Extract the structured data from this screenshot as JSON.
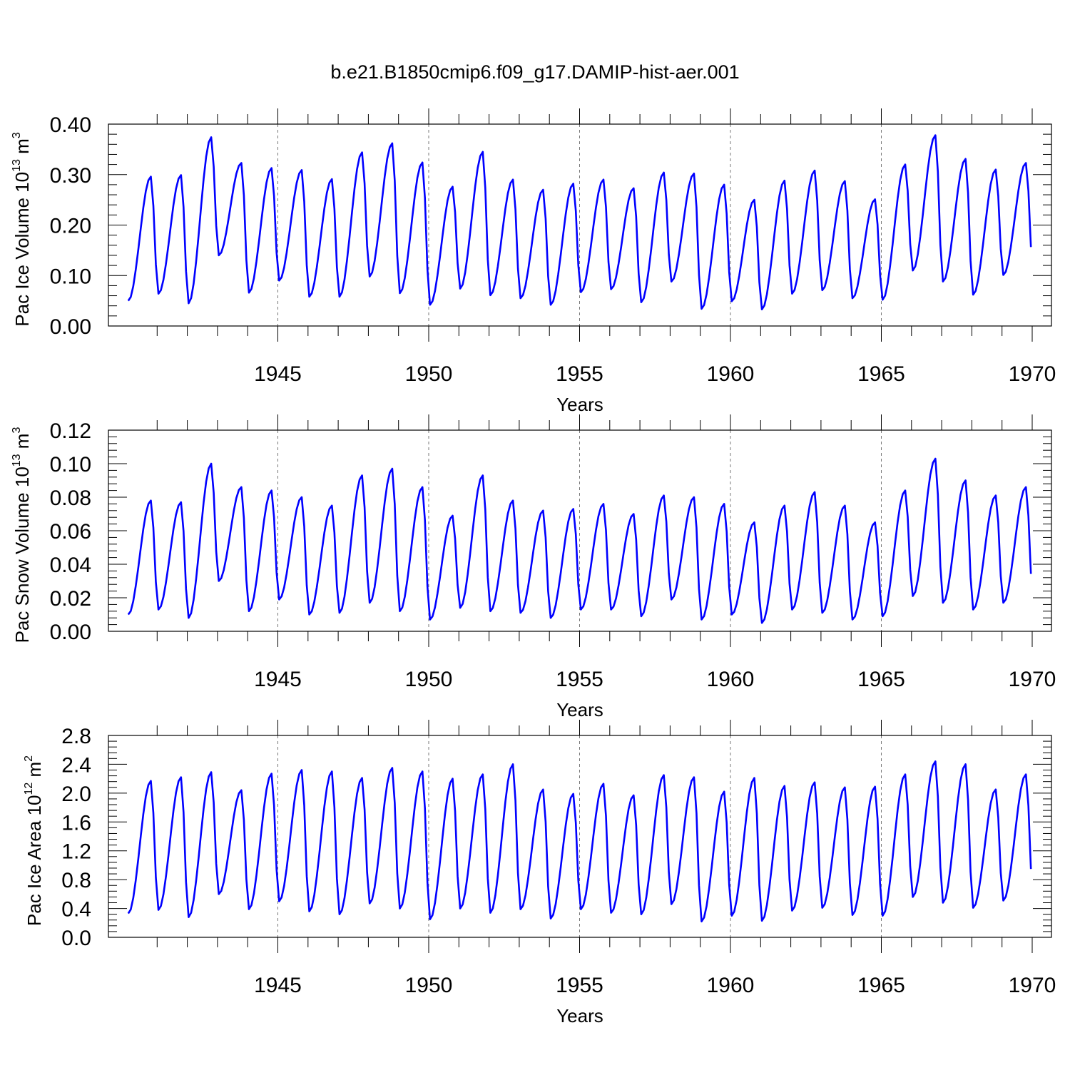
{
  "title": "b.e21.B1850cmip6.f09_g17.DAMIP-hist-aer.001",
  "chart_data": [
    {
      "type": "line",
      "ylabel": "Pac Ice Volume",
      "ylabel_unit_base": "10",
      "ylabel_unit_exp": "13",
      "ylabel_unit_m": "m",
      "ylabel_unit_dim": "3",
      "xlabel": "Years",
      "xlim": [
        1940.0,
        1970.0
      ],
      "ylim": [
        0.0,
        0.4
      ],
      "xticks": [
        "1945",
        "1950",
        "1955",
        "1960",
        "1965",
        "1970"
      ],
      "yticks": [
        "0.00",
        "0.10",
        "0.20",
        "0.30",
        "0.40"
      ],
      "line_color": "#0000ff",
      "grid": "vertical dashed at 1945, 1950, 1955, 1960, 1965",
      "series": [
        {
          "peaks": [
            0.296,
            0.299,
            0.374,
            0.323,
            0.313,
            0.309,
            0.291,
            0.344,
            0.362,
            0.324,
            0.276,
            0.345,
            0.29,
            0.27,
            0.282,
            0.29,
            0.273,
            0.304,
            0.302,
            0.28,
            0.25,
            0.288,
            0.308,
            0.287,
            0.251,
            0.32,
            0.378,
            0.331,
            0.31,
            0.323
          ],
          "troughs": [
            0.05,
            0.064,
            0.045,
            0.14,
            0.066,
            0.09,
            0.058,
            0.058,
            0.098,
            0.065,
            0.042,
            0.074,
            0.061,
            0.055,
            0.042,
            0.067,
            0.073,
            0.047,
            0.088,
            0.034,
            0.049,
            0.033,
            0.064,
            0.071,
            0.055,
            0.052,
            0.11,
            0.088,
            0.062,
            0.101
          ]
        }
      ]
    },
    {
      "type": "line",
      "ylabel": "Pac Snow Volume",
      "ylabel_unit_base": "10",
      "ylabel_unit_exp": "13",
      "ylabel_unit_m": "m",
      "ylabel_unit_dim": "3",
      "xlabel": "Years",
      "xlim": [
        1940.0,
        1970.0
      ],
      "ylim": [
        0.0,
        0.12
      ],
      "xticks": [
        "1945",
        "1950",
        "1955",
        "1960",
        "1965",
        "1970"
      ],
      "yticks": [
        "0.00",
        "0.02",
        "0.04",
        "0.06",
        "0.08",
        "0.10",
        "0.12"
      ],
      "line_color": "#0000ff",
      "grid": "vertical dashed at 1945, 1950, 1955, 1960, 1965",
      "series": [
        {
          "peaks": [
            0.078,
            0.077,
            0.1,
            0.086,
            0.084,
            0.08,
            0.075,
            0.093,
            0.097,
            0.086,
            0.069,
            0.093,
            0.078,
            0.072,
            0.073,
            0.076,
            0.07,
            0.081,
            0.08,
            0.076,
            0.065,
            0.075,
            0.083,
            0.075,
            0.065,
            0.084,
            0.103,
            0.09,
            0.081,
            0.086
          ],
          "troughs": [
            0.01,
            0.013,
            0.008,
            0.03,
            0.012,
            0.019,
            0.01,
            0.011,
            0.017,
            0.012,
            0.007,
            0.014,
            0.012,
            0.011,
            0.008,
            0.013,
            0.013,
            0.009,
            0.019,
            0.007,
            0.01,
            0.005,
            0.013,
            0.011,
            0.007,
            0.009,
            0.021,
            0.017,
            0.013,
            0.017
          ]
        }
      ]
    },
    {
      "type": "line",
      "ylabel": "Pac Ice Area",
      "ylabel_unit_base": "10",
      "ylabel_unit_exp": "12",
      "ylabel_unit_m": "m",
      "ylabel_unit_dim": "2",
      "xlabel": "Years",
      "xlim": [
        1940.0,
        1970.0
      ],
      "ylim": [
        0.0,
        2.8
      ],
      "xticks": [
        "1945",
        "1950",
        "1955",
        "1960",
        "1965",
        "1970"
      ],
      "yticks": [
        "0.0",
        "0.4",
        "0.8",
        "1.2",
        "1.6",
        "2.0",
        "2.4",
        "2.8"
      ],
      "line_color": "#0000ff",
      "grid": "vertical dashed at 1945, 1950, 1955, 1960, 1965",
      "series": [
        {
          "peaks": [
            2.17,
            2.22,
            2.29,
            2.04,
            2.27,
            2.32,
            2.3,
            2.21,
            2.35,
            2.3,
            2.2,
            2.26,
            2.4,
            2.05,
            1.99,
            2.13,
            1.97,
            2.25,
            2.22,
            2.02,
            2.21,
            2.1,
            2.15,
            2.08,
            2.09,
            2.26,
            2.44,
            2.4,
            2.05,
            2.26
          ],
          "troughs": [
            0.33,
            0.38,
            0.28,
            0.6,
            0.39,
            0.5,
            0.36,
            0.32,
            0.47,
            0.4,
            0.25,
            0.4,
            0.34,
            0.39,
            0.26,
            0.39,
            0.34,
            0.32,
            0.46,
            0.22,
            0.3,
            0.23,
            0.37,
            0.41,
            0.31,
            0.3,
            0.56,
            0.48,
            0.41,
            0.51
          ]
        }
      ]
    }
  ]
}
